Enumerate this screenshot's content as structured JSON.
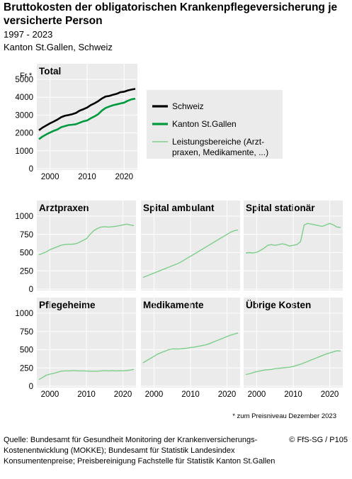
{
  "header": {
    "title": "Bruttokosten der obligatorischen Krankenpflegeversicherung je versicherte Person",
    "period": "1997 - 2023",
    "region": "Kanton St.Gallen, Schweiz"
  },
  "legend": {
    "items": [
      {
        "label": "Schweiz",
        "color": "#000000",
        "weight": "thick"
      },
      {
        "label": "Kanton St.Gallen",
        "color": "#009a3e",
        "weight": "thick"
      },
      {
        "label": "Leistungsbereiche (Arzt-",
        "label2": "praxen, Medikamente, ...)",
        "color": "#7ccf8a",
        "weight": "thin"
      }
    ]
  },
  "chart_data": [
    {
      "type": "line",
      "title": "Total",
      "ylabel": "Fr.*",
      "x": [
        1997,
        1998,
        1999,
        2000,
        2001,
        2002,
        2003,
        2004,
        2005,
        2006,
        2007,
        2008,
        2009,
        2010,
        2011,
        2012,
        2013,
        2014,
        2015,
        2016,
        2017,
        2018,
        2019,
        2020,
        2021,
        2022,
        2023
      ],
      "ylim": [
        0,
        5000
      ],
      "yticks": [
        0,
        1000,
        2000,
        3000,
        4000,
        5000
      ],
      "xticks": [
        2000,
        2010,
        2020
      ],
      "series": [
        {
          "name": "Schweiz",
          "color": "#000000",
          "values": [
            2150,
            2300,
            2420,
            2540,
            2640,
            2750,
            2880,
            2960,
            3000,
            3050,
            3120,
            3250,
            3330,
            3420,
            3560,
            3660,
            3780,
            3930,
            4040,
            4070,
            4140,
            4190,
            4280,
            4310,
            4380,
            4430,
            4470
          ]
        },
        {
          "name": "Kanton St.Gallen",
          "color": "#009a3e",
          "values": [
            1650,
            1800,
            1920,
            2020,
            2120,
            2200,
            2320,
            2380,
            2440,
            2460,
            2490,
            2570,
            2650,
            2700,
            2820,
            2930,
            3050,
            3250,
            3400,
            3480,
            3550,
            3600,
            3650,
            3700,
            3800,
            3880,
            3920
          ]
        }
      ]
    },
    {
      "type": "line",
      "title": "Arztpraxen",
      "x": [
        1997,
        1998,
        1999,
        2000,
        2001,
        2002,
        2003,
        2004,
        2005,
        2006,
        2007,
        2008,
        2009,
        2010,
        2011,
        2012,
        2013,
        2014,
        2015,
        2016,
        2017,
        2018,
        2019,
        2020,
        2021,
        2022,
        2023
      ],
      "ylim": [
        0,
        1000
      ],
      "yticks": [
        0,
        250,
        500,
        750,
        1000
      ],
      "xticks": [
        2000,
        2010,
        2020
      ],
      "series": [
        {
          "name": "Kanton St.Gallen",
          "color": "#7ccf8a",
          "values": [
            470,
            490,
            510,
            540,
            560,
            580,
            600,
            610,
            615,
            615,
            620,
            640,
            665,
            690,
            750,
            800,
            830,
            850,
            855,
            850,
            855,
            860,
            870,
            880,
            890,
            880,
            870
          ]
        }
      ]
    },
    {
      "type": "line",
      "title": "Spital ambulant",
      "x": [
        1997,
        1998,
        1999,
        2000,
        2001,
        2002,
        2003,
        2004,
        2005,
        2006,
        2007,
        2008,
        2009,
        2010,
        2011,
        2012,
        2013,
        2014,
        2015,
        2016,
        2017,
        2018,
        2019,
        2020,
        2021,
        2022,
        2023
      ],
      "ylim": [
        0,
        1000
      ],
      "yticks": [
        0,
        250,
        500,
        750,
        1000
      ],
      "xticks": [
        2000,
        2010,
        2020
      ],
      "series": [
        {
          "name": "Kanton St.Gallen",
          "color": "#7ccf8a",
          "values": [
            160,
            180,
            200,
            220,
            240,
            260,
            280,
            300,
            320,
            340,
            360,
            390,
            420,
            450,
            480,
            510,
            540,
            570,
            600,
            630,
            660,
            690,
            720,
            750,
            780,
            800,
            810
          ]
        }
      ]
    },
    {
      "type": "line",
      "title": "Spital stationär",
      "x": [
        1997,
        1998,
        1999,
        2000,
        2001,
        2002,
        2003,
        2004,
        2005,
        2006,
        2007,
        2008,
        2009,
        2010,
        2011,
        2012,
        2013,
        2014,
        2015,
        2016,
        2017,
        2018,
        2019,
        2020,
        2021,
        2022,
        2023
      ],
      "ylim": [
        0,
        1000
      ],
      "yticks": [
        0,
        250,
        500,
        750,
        1000
      ],
      "xticks": [
        2000,
        2010,
        2020
      ],
      "series": [
        {
          "name": "Kanton St.Gallen",
          "color": "#7ccf8a",
          "values": [
            495,
            500,
            495,
            505,
            530,
            560,
            600,
            610,
            600,
            610,
            620,
            610,
            590,
            600,
            610,
            650,
            880,
            900,
            890,
            880,
            870,
            860,
            880,
            900,
            880,
            850,
            845
          ]
        }
      ]
    },
    {
      "type": "line",
      "title": "Pflegeheime",
      "x": [
        1997,
        1998,
        1999,
        2000,
        2001,
        2002,
        2003,
        2004,
        2005,
        2006,
        2007,
        2008,
        2009,
        2010,
        2011,
        2012,
        2013,
        2014,
        2015,
        2016,
        2017,
        2018,
        2019,
        2020,
        2021,
        2022,
        2023
      ],
      "ylim": [
        0,
        1000
      ],
      "yticks": [
        0,
        250,
        500,
        750,
        1000
      ],
      "xticks": [
        2000,
        2010,
        2020
      ],
      "series": [
        {
          "name": "Kanton St.Gallen",
          "color": "#7ccf8a",
          "values": [
            90,
            120,
            150,
            165,
            175,
            190,
            205,
            210,
            210,
            212,
            212,
            210,
            210,
            208,
            205,
            205,
            205,
            210,
            212,
            210,
            212,
            210,
            212,
            210,
            215,
            220,
            230
          ]
        }
      ]
    },
    {
      "type": "line",
      "title": "Medikamente",
      "x": [
        1997,
        1998,
        1999,
        2000,
        2001,
        2002,
        2003,
        2004,
        2005,
        2006,
        2007,
        2008,
        2009,
        2010,
        2011,
        2012,
        2013,
        2014,
        2015,
        2016,
        2017,
        2018,
        2019,
        2020,
        2021,
        2022,
        2023
      ],
      "ylim": [
        0,
        1000
      ],
      "yticks": [
        0,
        250,
        500,
        750,
        1000
      ],
      "xticks": [
        2000,
        2010,
        2020
      ],
      "series": [
        {
          "name": "Kanton St.Gallen",
          "color": "#7ccf8a",
          "values": [
            320,
            350,
            380,
            410,
            440,
            460,
            480,
            500,
            510,
            510,
            510,
            515,
            520,
            530,
            535,
            545,
            555,
            565,
            580,
            600,
            620,
            640,
            660,
            680,
            700,
            715,
            730
          ]
        }
      ]
    },
    {
      "type": "line",
      "title": "Übrige Kosten",
      "x": [
        1997,
        1998,
        1999,
        2000,
        2001,
        2002,
        2003,
        2004,
        2005,
        2006,
        2007,
        2008,
        2009,
        2010,
        2011,
        2012,
        2013,
        2014,
        2015,
        2016,
        2017,
        2018,
        2019,
        2020,
        2021,
        2022,
        2023
      ],
      "ylim": [
        0,
        1000
      ],
      "yticks": [
        0,
        250,
        500,
        750,
        1000
      ],
      "xticks": [
        2000,
        2010,
        2020
      ],
      "series": [
        {
          "name": "Kanton St.Gallen",
          "color": "#7ccf8a",
          "values": [
            160,
            170,
            185,
            200,
            210,
            220,
            225,
            230,
            240,
            245,
            250,
            255,
            260,
            270,
            285,
            300,
            320,
            340,
            360,
            380,
            400,
            420,
            440,
            455,
            470,
            485,
            480
          ]
        }
      ]
    }
  ],
  "note": "* zum Preisniveau Dezember 2023",
  "footer": {
    "source": "Quelle: Bundesamt für Gesundheit Monitoring der Krankenversicherungs-Kostenentwicklung (MOKKE); Bundesamt für Statistik Landesindex Konsumentenpreise; Preisbereinigung Fachstelle für Statistik Kanton St.Gallen",
    "copyright": "© FfS-SG / P105"
  },
  "colors": {
    "panel_bg": "#ebebeb",
    "grid": "#ffffff",
    "text": "#000000"
  }
}
